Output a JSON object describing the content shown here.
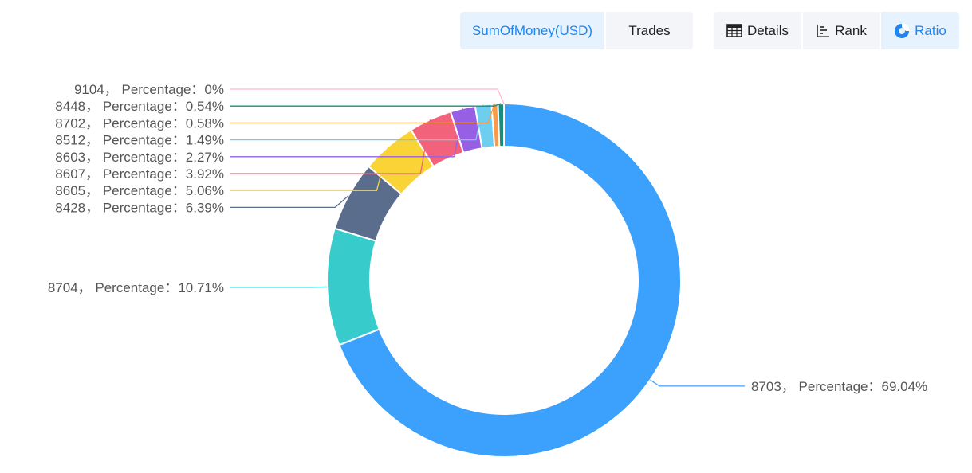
{
  "toolbar": {
    "metric_tabs": [
      {
        "label": "SumOfMoney(USD)",
        "active": true
      },
      {
        "label": "Trades",
        "active": false
      }
    ],
    "view_tabs": [
      {
        "label": "Details",
        "icon": "table-icon",
        "active": false
      },
      {
        "label": "Rank",
        "icon": "rank-bars-icon",
        "active": false
      },
      {
        "label": "Ratio",
        "icon": "donut-icon",
        "active": true
      }
    ]
  },
  "colors": {
    "active_text": "#1d86f0",
    "active_bg": "#e6f2fe",
    "tab_bg": "#f3f5f8"
  },
  "chart_data": {
    "type": "pie",
    "variant": "donut",
    "label_template": "{name}，  Percentage：{value}%",
    "slices": [
      {
        "name": "8703",
        "value": 69.04,
        "label": "8703，  Percentage：69.04%",
        "color": "#3ba1fd"
      },
      {
        "name": "8704",
        "value": 10.71,
        "label": "8704，  Percentage：10.71%",
        "color": "#37cbcb"
      },
      {
        "name": "8428",
        "value": 6.39,
        "label": "8428，  Percentage：6.39%",
        "color": "#5a6d8d"
      },
      {
        "name": "8605",
        "value": 5.06,
        "label": "8605，  Percentage：5.06%",
        "color": "#fad337"
      },
      {
        "name": "8607",
        "value": 3.92,
        "label": "8607，  Percentage：3.92%",
        "color": "#f2637b"
      },
      {
        "name": "8603",
        "value": 2.27,
        "label": "8603，  Percentage：2.27%",
        "color": "#975fe4"
      },
      {
        "name": "8512",
        "value": 1.49,
        "label": "8512，  Percentage：1.49%",
        "color": "#6dcef0"
      },
      {
        "name": "8702",
        "value": 0.58,
        "label": "8702，  Percentage：0.58%",
        "color": "#fa9a49"
      },
      {
        "name": "8448",
        "value": 0.54,
        "label": "8448，  Percentage：0.54%",
        "color": "#1a8c7b"
      },
      {
        "name": "9104",
        "value": 0,
        "label": "9104，  Percentage：0%",
        "color": "#ffb8d2"
      }
    ]
  }
}
